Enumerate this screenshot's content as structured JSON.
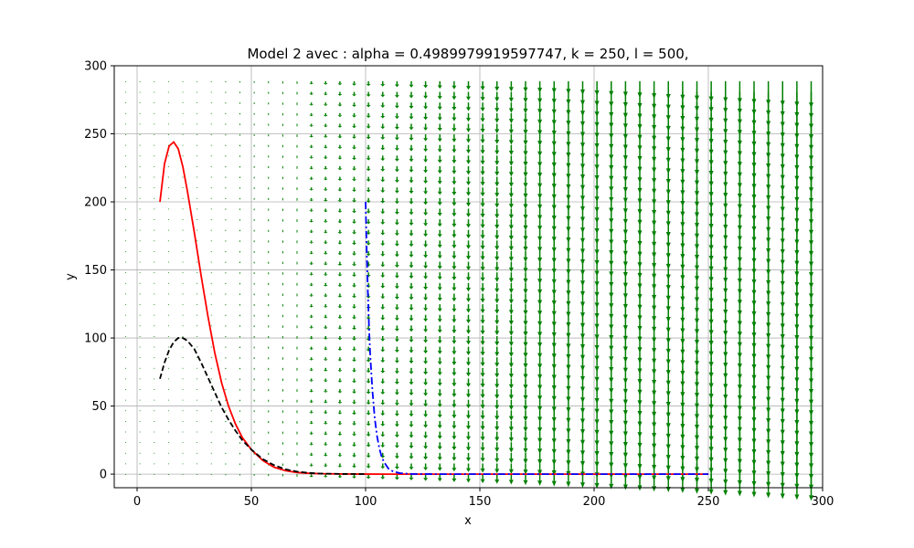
{
  "chart_data": {
    "type": "line",
    "title": "Model 2 avec : alpha = 0.4989979919597747, k = 250, l = 500,",
    "xlabel": "x",
    "ylabel": "y",
    "xlim": [
      -10,
      300
    ],
    "ylim": [
      -10,
      300
    ],
    "xticks": [
      0,
      50,
      100,
      150,
      200,
      250,
      300
    ],
    "yticks": [
      0,
      50,
      100,
      150,
      200,
      250,
      300
    ],
    "xtick_labels": [
      "0",
      "50",
      "100",
      "150",
      "200",
      "250",
      "300"
    ],
    "ytick_labels": [
      "0",
      "50",
      "100",
      "150",
      "200",
      "250",
      "300"
    ],
    "grid": true,
    "legend": "none",
    "colors": {
      "red": "#ff0000",
      "black": "#000000",
      "blue": "#0000ff",
      "field": "#008000",
      "grid": "#b0b0b0"
    },
    "series": [
      {
        "color": "#ff0000",
        "style": "solid",
        "x": [
          10,
          12,
          14,
          16,
          18,
          20,
          22,
          25,
          28,
          31,
          34,
          37,
          40,
          43,
          46,
          50,
          55,
          60,
          65,
          70,
          75,
          80,
          90,
          100,
          110,
          130,
          150,
          180,
          210,
          250
        ],
        "y": [
          200,
          228,
          241,
          244,
          239,
          226,
          208,
          178,
          146,
          116,
          89,
          67,
          50,
          37,
          27,
          18,
          10,
          5,
          2.5,
          1.2,
          0.6,
          0.3,
          0.1,
          0.03,
          0,
          0,
          0,
          0,
          0,
          0
        ]
      },
      {
        "color": "#000000",
        "style": "dashed",
        "x": [
          10,
          12,
          14,
          16,
          18,
          20,
          22,
          25,
          28,
          31,
          34,
          37,
          40,
          43,
          46,
          50,
          55,
          60,
          65,
          70,
          75,
          80,
          90,
          100
        ],
        "y": [
          70,
          82,
          91,
          97,
          100,
          100,
          98,
          92,
          82,
          71,
          60,
          49,
          40,
          32,
          25,
          18,
          11,
          6.5,
          3.5,
          1.8,
          0.9,
          0.4,
          0.1,
          0
        ]
      },
      {
        "color": "#0000ff",
        "style": "dashdot",
        "x": [
          100,
          100.5,
          101,
          101.5,
          102,
          103,
          104,
          105,
          106,
          107,
          108,
          110,
          112,
          115,
          120,
          130,
          150,
          180,
          210,
          250
        ],
        "y": [
          200,
          163,
          133,
          108,
          88,
          61,
          41,
          28,
          19,
          13,
          9,
          4,
          2,
          0.7,
          0.1,
          0,
          0,
          0,
          0,
          0
        ]
      }
    ]
  }
}
